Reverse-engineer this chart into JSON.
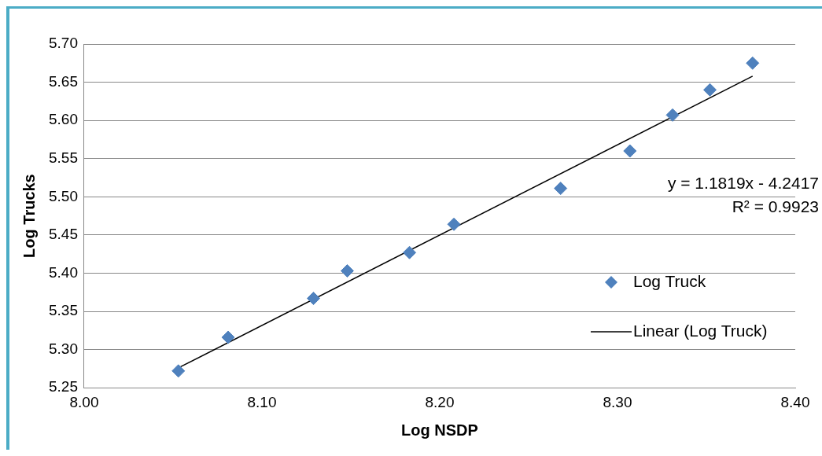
{
  "chart_data": {
    "type": "scatter",
    "xlabel": "Log NSDP",
    "ylabel": "Log Trucks",
    "xlim": [
      8.0,
      8.4
    ],
    "xticks": [
      {
        "value": 8.0,
        "label": "8.00"
      },
      {
        "value": 8.1,
        "label": "8.10"
      },
      {
        "value": 8.2,
        "label": "8.20"
      },
      {
        "value": 8.3,
        "label": "8.30"
      },
      {
        "value": 8.4,
        "label": "8.40"
      }
    ],
    "ylim": [
      5.25,
      5.7
    ],
    "yticks": [
      5.25,
      {
        "value": 5.3,
        "label": "5.30"
      },
      5.35,
      {
        "value": 5.4,
        "label": "5.40"
      },
      5.45,
      {
        "value": 5.5,
        "label": "5.50"
      },
      5.55,
      {
        "value": 5.6,
        "label": "5.60"
      },
      5.65,
      {
        "value": 5.7,
        "label": "5.70"
      }
    ],
    "grid": "y",
    "legend": "right",
    "marker": "diamond",
    "annotations": [
      "y = 1.1819x - 4.2417",
      "R² = 0.9923"
    ],
    "series": [
      {
        "name": "Log Truck",
        "color": "#4f81bd",
        "x": [
          8.053,
          8.081,
          8.129,
          8.148,
          8.183,
          8.208,
          8.268,
          8.307,
          8.331,
          8.352,
          8.376
        ],
        "values": [
          5.272,
          5.316,
          5.367,
          5.403,
          5.427,
          5.464,
          5.511,
          5.56,
          5.607,
          5.64,
          5.675
        ]
      },
      {
        "name": "Linear (Log Truck)",
        "type": "line",
        "color": "#000000",
        "marker": "none",
        "x": [
          8.053,
          8.376
        ],
        "values": [
          5.276,
          5.658
        ]
      }
    ]
  }
}
